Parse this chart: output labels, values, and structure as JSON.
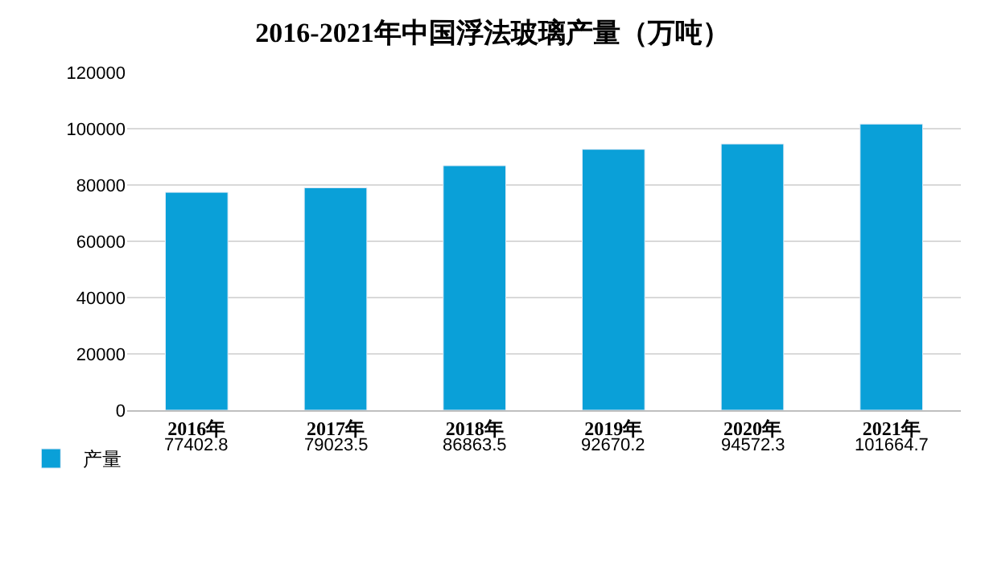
{
  "chart_data": {
    "type": "bar",
    "title": "2016-2021年中国浮法玻璃产量（万吨）",
    "categories": [
      "2016年",
      "2017年",
      "2018年",
      "2019年",
      "2020年",
      "2021年"
    ],
    "series": [
      {
        "name": "产量",
        "color": "#0aa0d8",
        "values": [
          77402.8,
          79023.5,
          86863.5,
          92670.2,
          94572.3,
          101664.7
        ]
      }
    ],
    "ylim": [
      0,
      120000
    ],
    "yticks": [
      0,
      20000,
      40000,
      60000,
      80000,
      100000,
      120000
    ],
    "grid": "y",
    "legend": "bottom left",
    "data_labels": true
  }
}
